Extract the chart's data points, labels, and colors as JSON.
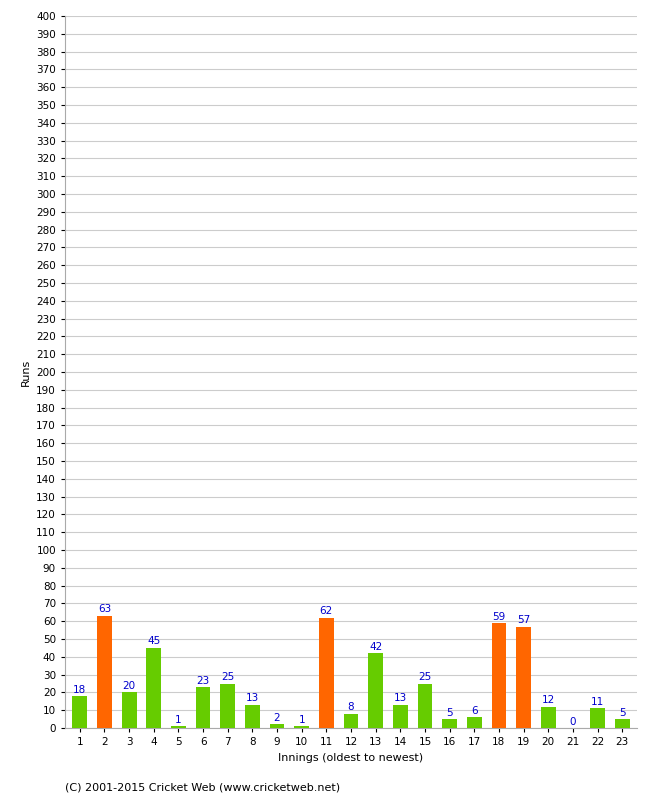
{
  "values": [
    18,
    63,
    20,
    45,
    1,
    23,
    25,
    13,
    2,
    1,
    62,
    8,
    42,
    13,
    25,
    5,
    6,
    59,
    57,
    12,
    0,
    11,
    5
  ],
  "colors": [
    "#66cc00",
    "#ff6600",
    "#66cc00",
    "#66cc00",
    "#66cc00",
    "#66cc00",
    "#66cc00",
    "#66cc00",
    "#66cc00",
    "#66cc00",
    "#ff6600",
    "#66cc00",
    "#66cc00",
    "#66cc00",
    "#66cc00",
    "#66cc00",
    "#66cc00",
    "#ff6600",
    "#ff6600",
    "#66cc00",
    "#66cc00",
    "#66cc00",
    "#66cc00"
  ],
  "innings": [
    1,
    2,
    3,
    4,
    5,
    6,
    7,
    8,
    9,
    10,
    11,
    12,
    13,
    14,
    15,
    16,
    17,
    18,
    19,
    20,
    21,
    22,
    23
  ],
  "xlabel": "Innings (oldest to newest)",
  "ylabel": "Runs",
  "ylim": [
    0,
    400
  ],
  "yticks": [
    0,
    10,
    20,
    30,
    40,
    50,
    60,
    70,
    80,
    90,
    100,
    110,
    120,
    130,
    140,
    150,
    160,
    170,
    180,
    190,
    200,
    210,
    220,
    230,
    240,
    250,
    260,
    270,
    280,
    290,
    300,
    310,
    320,
    330,
    340,
    350,
    360,
    370,
    380,
    390,
    400
  ],
  "label_color": "#0000cc",
  "label_fontsize": 7.5,
  "tick_fontsize": 7.5,
  "bar_width": 0.6,
  "grid_color": "#cccccc",
  "bg_color": "#ffffff",
  "footer": "(C) 2001-2015 Cricket Web (www.cricketweb.net)",
  "footer_fontsize": 8,
  "xlabel_fontsize": 8,
  "ylabel_fontsize": 8
}
